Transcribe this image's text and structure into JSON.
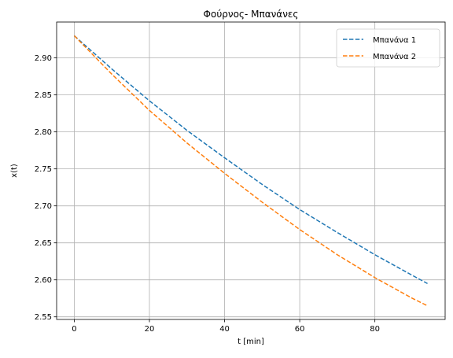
{
  "chart_data": {
    "type": "line",
    "title": "Φούρνος- Μπανάνες",
    "xlabel": "t [min]",
    "ylabel": "x(t)",
    "xlim": [
      -4.7,
      98.7
    ],
    "ylim": [
      2.5465,
      2.9485
    ],
    "xticks": [
      0,
      20,
      40,
      60,
      80
    ],
    "yticks": [
      2.55,
      2.6,
      2.65,
      2.7,
      2.75,
      2.8,
      2.85,
      2.9
    ],
    "grid": true,
    "legend_position": "upper right",
    "series": [
      {
        "name": "Μπανάνα 1",
        "color": "#1f77b4",
        "dash": "dashed",
        "x": [
          0,
          10,
          20,
          30,
          40,
          50,
          60,
          70,
          80,
          90,
          94
        ],
        "y": [
          2.93,
          2.885,
          2.842,
          2.802,
          2.765,
          2.729,
          2.695,
          2.664,
          2.634,
          2.606,
          2.595
        ]
      },
      {
        "name": "Μπανάνα 2",
        "color": "#ff7f0e",
        "dash": "dashed",
        "x": [
          0,
          10,
          20,
          30,
          40,
          50,
          60,
          70,
          80,
          90,
          94
        ],
        "y": [
          2.93,
          2.878,
          2.829,
          2.785,
          2.744,
          2.705,
          2.668,
          2.634,
          2.603,
          2.575,
          2.565
        ]
      }
    ]
  }
}
